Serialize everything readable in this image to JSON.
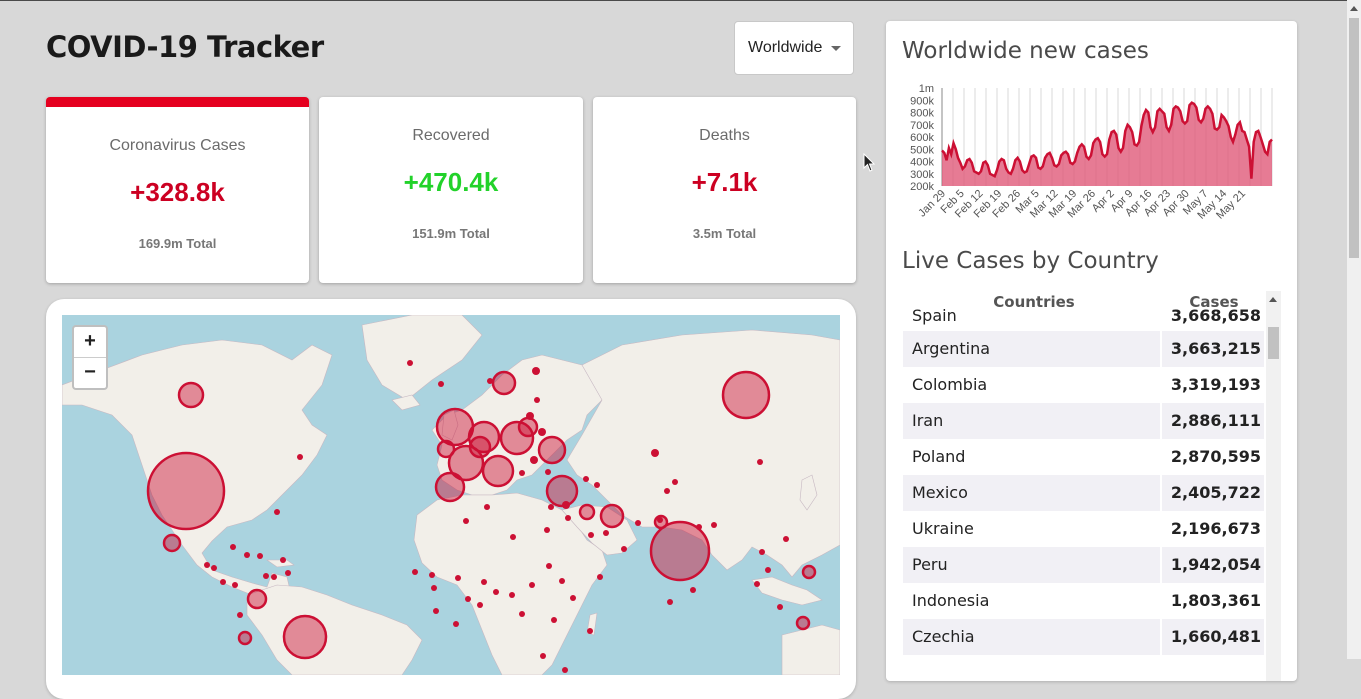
{
  "header": {
    "title": "COVID-19 Tracker"
  },
  "country_select": {
    "selected": "Worldwide"
  },
  "cards": [
    {
      "label": "Coronavirus Cases",
      "value": "+328.8k",
      "total": "169.9m Total",
      "active": true
    },
    {
      "label": "Recovered",
      "value": "+470.4k",
      "total": "151.9m Total",
      "active": false
    },
    {
      "label": "Deaths",
      "value": "+7.1k",
      "total": "3.5m Total",
      "active": false
    }
  ],
  "map": {
    "zoom_in": "+",
    "zoom_out": "−"
  },
  "new_cases": {
    "heading": "Worldwide new cases",
    "chart_data": {
      "type": "area",
      "y_ticks": [
        "1m",
        "900k",
        "800k",
        "700k",
        "600k",
        "500k",
        "400k",
        "300k",
        "200k"
      ],
      "ylim": [
        200000,
        1000000
      ],
      "x_ticks": [
        "Jan 29",
        "Feb 5",
        "Feb 12",
        "Feb 19",
        "Feb 26",
        "Mar 5",
        "Mar 12",
        "Mar 19",
        "Mar 26",
        "Apr 2",
        "Apr 9",
        "Apr 16",
        "Apr 23",
        "Apr 30",
        "May 7",
        "May 14",
        "May 21"
      ],
      "values": [
        490000,
        470000,
        410000,
        510000,
        460000,
        550000,
        500000,
        430000,
        390000,
        340000,
        360000,
        410000,
        420000,
        390000,
        320000,
        310000,
        300000,
        320000,
        390000,
        400000,
        370000,
        300000,
        290000,
        280000,
        330000,
        400000,
        420000,
        410000,
        340000,
        310000,
        300000,
        340000,
        410000,
        430000,
        400000,
        330000,
        310000,
        320000,
        380000,
        440000,
        450000,
        430000,
        350000,
        340000,
        360000,
        430000,
        460000,
        470000,
        430000,
        370000,
        360000,
        380000,
        450000,
        470000,
        480000,
        460000,
        390000,
        380000,
        400000,
        470000,
        520000,
        540000,
        520000,
        440000,
        420000,
        450000,
        550000,
        580000,
        590000,
        560000,
        460000,
        440000,
        460000,
        580000,
        640000,
        650000,
        620000,
        510000,
        480000,
        510000,
        650000,
        700000,
        680000,
        640000,
        540000,
        530000,
        560000,
        690000,
        780000,
        820000,
        800000,
        680000,
        640000,
        680000,
        810000,
        830000,
        810000,
        790000,
        680000,
        650000,
        700000,
        830000,
        850000,
        840000,
        810000,
        730000,
        710000,
        730000,
        860000,
        880000,
        870000,
        840000,
        740000,
        720000,
        750000,
        830000,
        850000,
        830000,
        790000,
        670000,
        660000,
        680000,
        780000,
        760000,
        730000,
        690000,
        600000,
        560000,
        620000,
        700000,
        720000,
        650000,
        640000,
        580000,
        520000,
        260000,
        560000,
        640000,
        650000,
        600000,
        540000,
        480000,
        460000,
        560000,
        580000
      ]
    }
  },
  "live_cases": {
    "heading": "Live Cases by Country",
    "columns": [
      "Countries",
      "Cases"
    ],
    "rows": [
      {
        "country": "Spain",
        "cases": "3,668,658"
      },
      {
        "country": "Argentina",
        "cases": "3,663,215"
      },
      {
        "country": "Colombia",
        "cases": "3,319,193"
      },
      {
        "country": "Iran",
        "cases": "2,886,111"
      },
      {
        "country": "Poland",
        "cases": "2,870,595"
      },
      {
        "country": "Mexico",
        "cases": "2,405,722"
      },
      {
        "country": "Ukraine",
        "cases": "2,196,673"
      },
      {
        "country": "Peru",
        "cases": "1,942,054"
      },
      {
        "country": "Indonesia",
        "cases": "1,803,361"
      },
      {
        "country": "Czechia",
        "cases": "1,660,481"
      }
    ]
  },
  "colors": {
    "accent": "#cc1034",
    "recovered": "#22d22a",
    "area_fill": "#e05a79"
  }
}
